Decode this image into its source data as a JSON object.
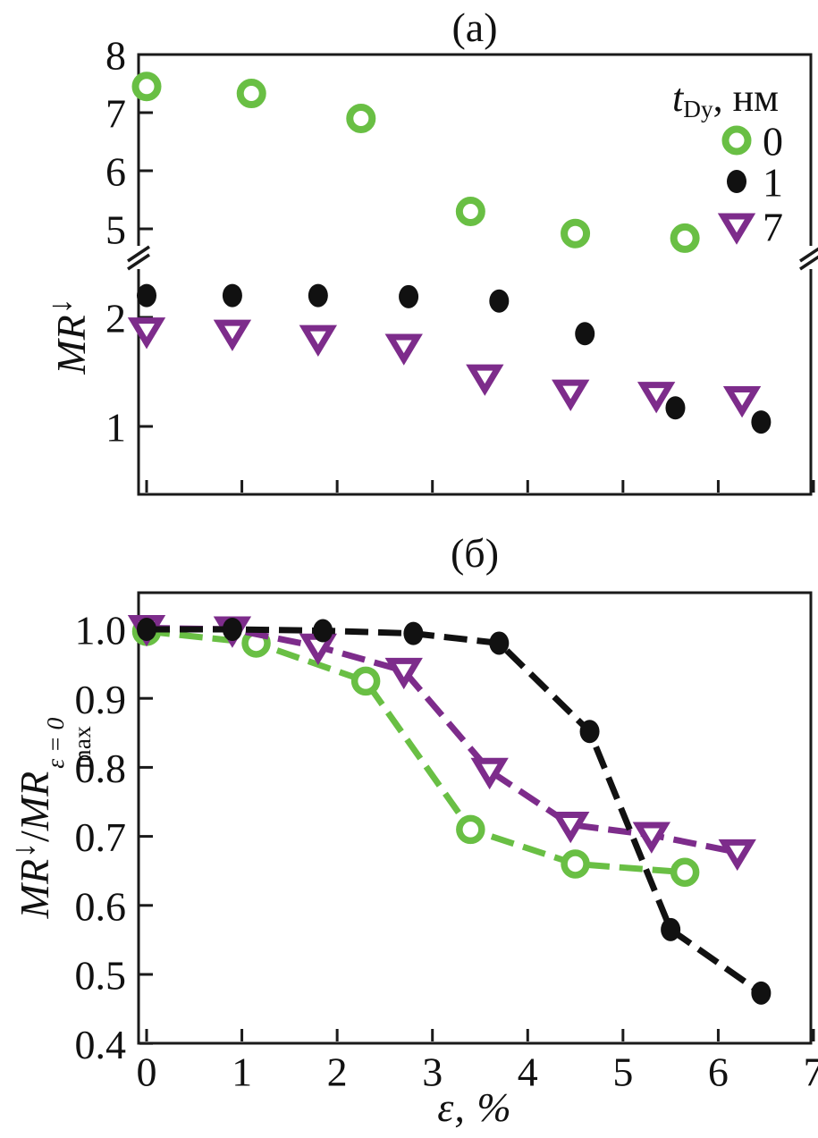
{
  "figure": {
    "background": "#ffffff",
    "axis_color": "#1a1a1a",
    "panels": {
      "a": {
        "title": "(а)"
      },
      "b": {
        "title": "(б)"
      }
    },
    "labels": {
      "ylabel_a": {
        "base": "MR",
        "sup": "↓"
      },
      "ylabel_b": {
        "num_base": "MR",
        "num_sup": "↓",
        "slash": "/",
        "den_base": "MR",
        "den_sub": "max",
        "den_sup": "ε = 0"
      },
      "xlabel": "ε, %"
    },
    "legend": {
      "title_var": "t",
      "title_sub": "Dy",
      "title_units": ", нм"
    }
  },
  "chart_data": [
    {
      "type": "scatter",
      "title": "(а)",
      "ylabel": "MR↓",
      "xlabel": "",
      "x_axis": {
        "range": [
          0,
          7
        ],
        "ticks": [
          0,
          1,
          2,
          3,
          4,
          5,
          6,
          7
        ],
        "labels_shown": false
      },
      "y_axis": {
        "broken": true,
        "upper_ticks": [
          5,
          6,
          7,
          8
        ],
        "lower_ticks": [
          1,
          2
        ],
        "upper_range": [
          4.5,
          8
        ],
        "lower_range": [
          0.4,
          2.55
        ]
      },
      "legend": {
        "title": "t_Dy, нм",
        "position": "top-right",
        "entries": [
          "0",
          "1",
          "7"
        ]
      },
      "series": [
        {
          "name": "0",
          "marker": "open-circle",
          "color": "#69bf44",
          "x": [
            0,
            1.1,
            2.25,
            3.4,
            4.5,
            5.65
          ],
          "y": [
            7.45,
            7.33,
            6.9,
            5.3,
            4.92,
            4.84
          ]
        },
        {
          "name": "1",
          "marker": "filled-circle",
          "color": "#111111",
          "x": [
            0,
            0.9,
            1.8,
            2.75,
            3.7,
            4.6,
            5.55,
            6.45
          ],
          "y": [
            2.2,
            2.2,
            2.2,
            2.19,
            2.15,
            1.85,
            1.17,
            1.04
          ]
        },
        {
          "name": "7",
          "marker": "open-triangle-down",
          "color": "#7d2c8b",
          "x": [
            0,
            0.9,
            1.8,
            2.7,
            3.55,
            4.45,
            5.35,
            6.25
          ],
          "y": [
            1.88,
            1.86,
            1.81,
            1.73,
            1.45,
            1.31,
            1.29,
            1.25
          ]
        }
      ]
    },
    {
      "type": "line",
      "title": "(б)",
      "ylabel": "MR↓/MRmax^(ε = 0)",
      "xlabel": "ε, %",
      "line_style": "dashed",
      "x_axis": {
        "range": [
          0,
          7
        ],
        "ticks": [
          0,
          1,
          2,
          3,
          4,
          5,
          6,
          7
        ],
        "labels_shown": true
      },
      "y_axis": {
        "range": [
          0.4,
          1.05
        ],
        "ticks": [
          1.0,
          0.9,
          0.8,
          0.7,
          0.6,
          0.5,
          0.4
        ]
      },
      "series": [
        {
          "name": "0",
          "marker": "open-circle",
          "color": "#69bf44",
          "x": [
            0,
            1.15,
            2.3,
            3.4,
            4.5,
            5.65
          ],
          "y": [
            0.997,
            0.98,
            0.925,
            0.71,
            0.66,
            0.648
          ]
        },
        {
          "name": "1",
          "marker": "filled-circle",
          "color": "#111111",
          "x": [
            0,
            0.9,
            1.85,
            2.8,
            3.7,
            4.65,
            5.5,
            6.45
          ],
          "y": [
            1.0,
            1.0,
            0.998,
            0.994,
            0.98,
            0.852,
            0.565,
            0.473
          ]
        },
        {
          "name": "7",
          "marker": "open-triangle-down",
          "color": "#7d2c8b",
          "x": [
            0,
            0.9,
            1.8,
            2.7,
            3.6,
            4.45,
            5.3,
            6.2
          ],
          "y": [
            1.002,
            1.0,
            0.975,
            0.94,
            0.795,
            0.717,
            0.702,
            0.677
          ]
        }
      ]
    }
  ]
}
